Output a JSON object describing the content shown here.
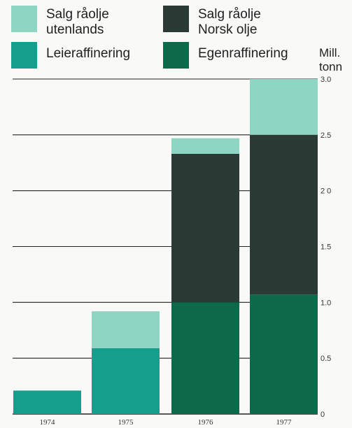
{
  "chart_data": {
    "type": "bar",
    "stacked": true,
    "categories": [
      "1974",
      "1975",
      "1976",
      "1977"
    ],
    "series": [
      {
        "name": "Egenraffinering",
        "values": [
          0,
          0,
          1.0,
          1.07
        ],
        "color": "#0c6a4b"
      },
      {
        "name": "Leieraffinering",
        "values": [
          0.21,
          0.59,
          0,
          0
        ],
        "color": "#139f8b"
      },
      {
        "name": "Salg råolje Norsk olje",
        "values": [
          0,
          0,
          1.33,
          1.43
        ],
        "color": "#2b3a35"
      },
      {
        "name": "Salg råolje utenlands",
        "values": [
          0,
          0.33,
          0.14,
          0.5
        ],
        "color": "#8fd5c4"
      }
    ],
    "ylim": [
      0,
      3.0
    ],
    "yticks": [
      "0",
      "0.5",
      "1.0",
      "1.5",
      "2 0",
      "2.5",
      "3.0"
    ],
    "ytick_values": [
      0,
      0.5,
      1.0,
      1.5,
      2.0,
      2.5,
      3.0
    ],
    "ylabel": "Mill. tonn",
    "grid": true,
    "legend_position": "top"
  },
  "legend": {
    "items": [
      {
        "lines": [
          "Salg råolje",
          "utenlands"
        ],
        "color": "#8fd5c4"
      },
      {
        "lines": [
          "Salg råolje",
          "Norsk olje"
        ],
        "color": "#2b3a35"
      },
      {
        "lines": [
          "Leieraffinering"
        ],
        "color": "#139f8b"
      },
      {
        "lines": [
          "Egenraffinering"
        ],
        "color": "#0c6a4b"
      }
    ]
  },
  "unit_label": {
    "lines": [
      "Mill.",
      "tonn"
    ]
  }
}
